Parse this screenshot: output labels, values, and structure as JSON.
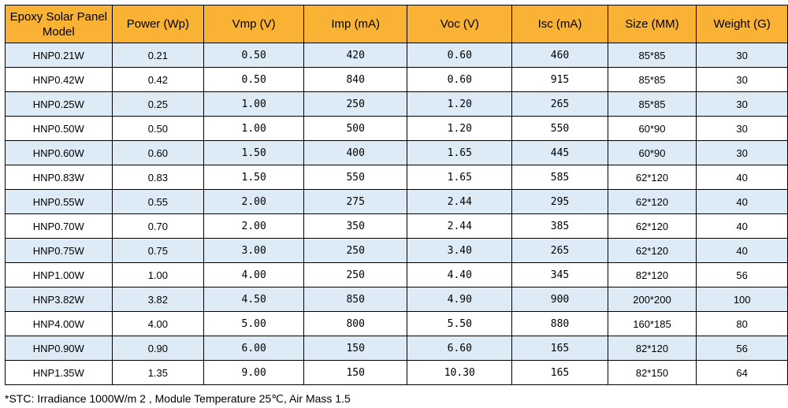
{
  "columns": [
    "Epoxy Solar Panel Model",
    "Power (Wp)",
    "Vmp (V)",
    "Imp (mA)",
    "Voc (V)",
    "Isc (mA)",
    "Size (MM)",
    "Weight (G)"
  ],
  "rows": [
    [
      "HNP0.21W",
      "0.21",
      "0.50",
      "420",
      "0.60",
      "460",
      "85*85",
      "30"
    ],
    [
      "HNP0.42W",
      "0.42",
      "0.50",
      "840",
      "0.60",
      "915",
      "85*85",
      "30"
    ],
    [
      "HNP0.25W",
      "0.25",
      "1.00",
      "250",
      "1.20",
      "265",
      "85*85",
      "30"
    ],
    [
      "HNP0.50W",
      "0.50",
      "1.00",
      "500",
      "1.20",
      "550",
      "60*90",
      "30"
    ],
    [
      "HNP0.60W",
      "0.60",
      "1.50",
      "400",
      "1.65",
      "445",
      "60*90",
      "30"
    ],
    [
      "HNP0.83W",
      "0.83",
      "1.50",
      "550",
      "1.65",
      "585",
      "62*120",
      "40"
    ],
    [
      "HNP0.55W",
      "0.55",
      "2.00",
      "275",
      "2.44",
      "295",
      "62*120",
      "40"
    ],
    [
      "HNP0.70W",
      "0.70",
      "2.00",
      "350",
      "2.44",
      "385",
      "62*120",
      "40"
    ],
    [
      "HNP0.75W",
      "0.75",
      "3.00",
      "250",
      "3.40",
      "265",
      "62*120",
      "40"
    ],
    [
      "HNP1.00W",
      "1.00",
      "4.00",
      "250",
      "4.40",
      "345",
      "82*120",
      "56"
    ],
    [
      "HNP3.82W",
      "3.82",
      "4.50",
      "850",
      "4.90",
      "900",
      "200*200",
      "100"
    ],
    [
      "HNP4.00W",
      "4.00",
      "5.00",
      "800",
      "5.50",
      "880",
      "160*185",
      "80"
    ],
    [
      "HNP0.90W",
      "0.90",
      "6.00",
      "150",
      "6.60",
      "165",
      "82*120",
      "56"
    ],
    [
      "HNP1.35W",
      "1.35",
      "9.00",
      "150",
      "10.30",
      "165",
      "82*150",
      "64"
    ]
  ],
  "footnote": "*STC:  Irradiance 1000W/m 2 , Module Temperature 25℃, Air Mass 1.5",
  "colors": {
    "header_background": "#f9b233",
    "alternate_row_background": "#dcebf6",
    "border": "#000000"
  }
}
